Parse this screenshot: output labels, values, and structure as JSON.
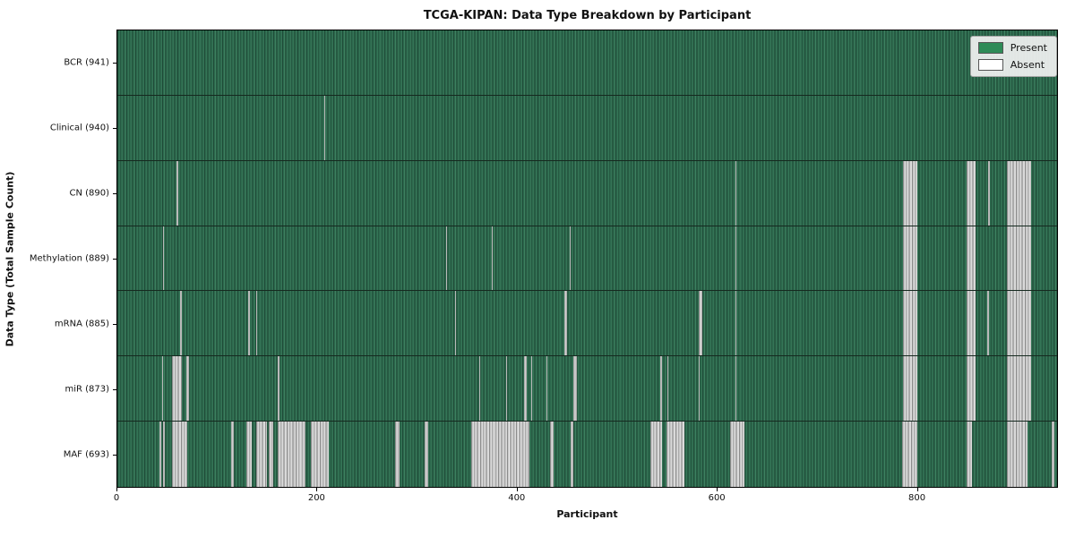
{
  "title": "TCGA-KIPAN: Data Type Breakdown by Participant",
  "axes": {
    "xlabel": "Participant",
    "ylabel": "Data Type (Total Sample Count)",
    "x_ticks": [
      0,
      200,
      400,
      600,
      800
    ],
    "x_min": 0,
    "x_max": 941
  },
  "legend": {
    "items": [
      {
        "label": "Present",
        "color": "#2e8b57"
      },
      {
        "label": "Absent",
        "color": "#ffffff"
      }
    ]
  },
  "colors": {
    "present_green": "#2e8b57",
    "present_dark_edge": "#1e4a37",
    "absent_gray": "#c6c6c6",
    "absent_white": "#ffffff",
    "plot_border": "#000000",
    "background": "#ffffff"
  },
  "chart_data": {
    "type": "heatmap",
    "title": "TCGA-KIPAN: Data Type Breakdown by Participant",
    "xlabel": "Participant",
    "ylabel": "Data Type (Total Sample Count)",
    "legend_position": "upper right",
    "x_range": [
      0,
      941
    ],
    "rows": [
      {
        "label": "BCR (941)",
        "name": "BCR",
        "total_samples": 941,
        "absent_segments": []
      },
      {
        "label": "Clinical (940)",
        "name": "Clinical",
        "total_samples": 940,
        "absent_segments": [
          [
            207,
            208
          ]
        ]
      },
      {
        "label": "CN (890)",
        "name": "CN",
        "total_samples": 890,
        "absent_segments": [
          [
            59,
            61
          ],
          [
            619,
            620
          ],
          [
            787,
            801
          ],
          [
            850,
            859
          ],
          [
            872,
            874
          ],
          [
            891,
            915
          ]
        ]
      },
      {
        "label": "Methylation (889)",
        "name": "Methylation",
        "total_samples": 889,
        "absent_segments": [
          [
            46,
            47
          ],
          [
            329,
            330
          ],
          [
            375,
            376
          ],
          [
            453,
            454
          ],
          [
            619,
            620
          ],
          [
            787,
            801
          ],
          [
            850,
            859
          ],
          [
            891,
            915
          ]
        ]
      },
      {
        "label": "mRNA (885)",
        "name": "mRNA",
        "total_samples": 885,
        "absent_segments": [
          [
            63,
            65
          ],
          [
            131,
            133
          ],
          [
            139,
            140
          ],
          [
            338,
            339
          ],
          [
            448,
            450
          ],
          [
            582,
            586
          ],
          [
            619,
            620
          ],
          [
            787,
            801
          ],
          [
            850,
            859
          ],
          [
            871,
            873
          ],
          [
            891,
            915
          ]
        ]
      },
      {
        "label": "miR (873)",
        "name": "miR",
        "total_samples": 873,
        "absent_segments": [
          [
            45,
            46
          ],
          [
            55,
            65
          ],
          [
            69,
            72
          ],
          [
            161,
            162
          ],
          [
            362,
            363
          ],
          [
            389,
            390
          ],
          [
            407,
            410
          ],
          [
            414,
            415
          ],
          [
            430,
            431
          ],
          [
            457,
            460
          ],
          [
            544,
            545
          ],
          [
            551,
            552
          ],
          [
            582,
            583
          ],
          [
            619,
            620
          ],
          [
            787,
            801
          ],
          [
            850,
            859
          ],
          [
            891,
            915
          ]
        ]
      },
      {
        "label": "MAF (693)",
        "name": "MAF",
        "total_samples": 693,
        "absent_segments": [
          [
            42,
            44
          ],
          [
            46,
            48
          ],
          [
            55,
            70
          ],
          [
            114,
            117
          ],
          [
            129,
            135
          ],
          [
            139,
            150
          ],
          [
            152,
            156
          ],
          [
            161,
            188
          ],
          [
            194,
            212
          ],
          [
            278,
            283
          ],
          [
            308,
            311
          ],
          [
            354,
            413
          ],
          [
            433,
            437
          ],
          [
            454,
            457
          ],
          [
            534,
            545
          ],
          [
            550,
            568
          ],
          [
            614,
            628
          ],
          [
            786,
            801
          ],
          [
            850,
            856
          ],
          [
            891,
            911
          ],
          [
            936,
            938
          ]
        ]
      }
    ]
  }
}
